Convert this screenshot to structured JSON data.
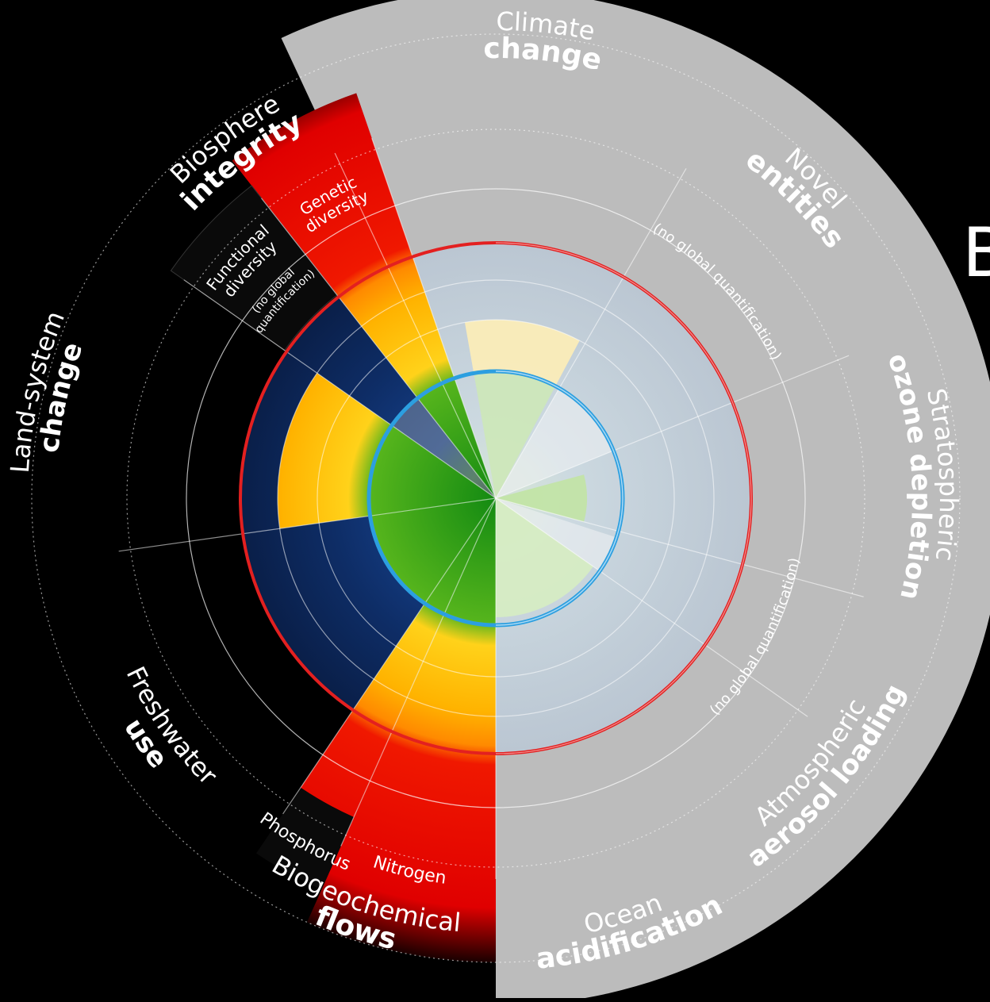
{
  "boundaries": [
    {
      "id": "climate",
      "line1": "Climate",
      "line2": "change",
      "status": "greyed"
    },
    {
      "id": "novel",
      "line1": "Novel",
      "line2": "entities",
      "status": "greyed",
      "sub": "(no global quantification)"
    },
    {
      "id": "ozone",
      "line1": "Stratospheric",
      "line2": "ozone depletion",
      "status": "greyed"
    },
    {
      "id": "aerosol",
      "line1": "Atmospheric",
      "line2": "aerosol loading",
      "status": "greyed",
      "sub": "(no global quantification)"
    },
    {
      "id": "ocean",
      "line1": "Ocean",
      "line2": "acidification",
      "status": "greyed"
    },
    {
      "id": "biogeo",
      "line1": "Biogeochemical",
      "line2": "flows",
      "status": "high-risk",
      "subs": [
        {
          "label": "Phosphorus"
        },
        {
          "label": "Nitrogen"
        }
      ]
    },
    {
      "id": "fresh",
      "line1": "Freshwater",
      "line2": "use",
      "status": "safe"
    },
    {
      "id": "land",
      "line1": "Land-system",
      "line2": "change",
      "status": "increasing-risk"
    },
    {
      "id": "bio",
      "line1": "Biosphere",
      "line2": "integrity",
      "status": "high-risk",
      "subs": [
        {
          "label": "Genetic",
          "label2": "diversity"
        },
        {
          "label": "Functional",
          "label2": "diversity",
          "note1": "(no global",
          "note2": "quantification)"
        }
      ]
    }
  ],
  "edge_text": "B",
  "colors": {
    "background": "#000000",
    "grey_half": "#bcbcbc",
    "safe_green": "#2e9a1c",
    "risk_yellow": "#ffc20e",
    "risk_orange": "#ff8a00",
    "high_risk_red": "#e40000",
    "boundary_ring": "#e32020",
    "inner_ring": "#2c9fe0"
  }
}
